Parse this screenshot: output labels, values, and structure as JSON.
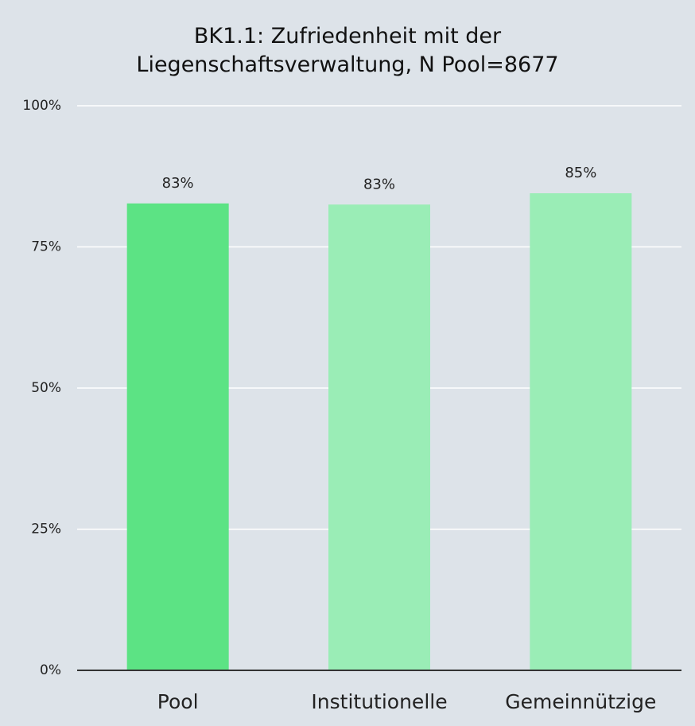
{
  "chart_data": {
    "type": "bar",
    "title": "BK1.1: Zufriedenheit mit der Liegenschaftsverwaltung, N Pool=8677",
    "categories": [
      "Pool",
      "Institutionelle",
      "Gemeinnützige"
    ],
    "values": [
      82.7,
      82.5,
      84.5
    ],
    "value_labels": [
      "83%",
      "83%",
      "85%"
    ],
    "colors": [
      "#5ce384",
      "#9aedb6",
      "#9aedb6"
    ],
    "ylim": [
      0,
      100
    ],
    "yticks": [
      {
        "value": 0,
        "label": "0%"
      },
      {
        "value": 25,
        "label": "25%"
      },
      {
        "value": 50,
        "label": "50%"
      },
      {
        "value": 75,
        "label": "75%"
      },
      {
        "value": 100,
        "label": "100%"
      }
    ],
    "grid": true
  }
}
